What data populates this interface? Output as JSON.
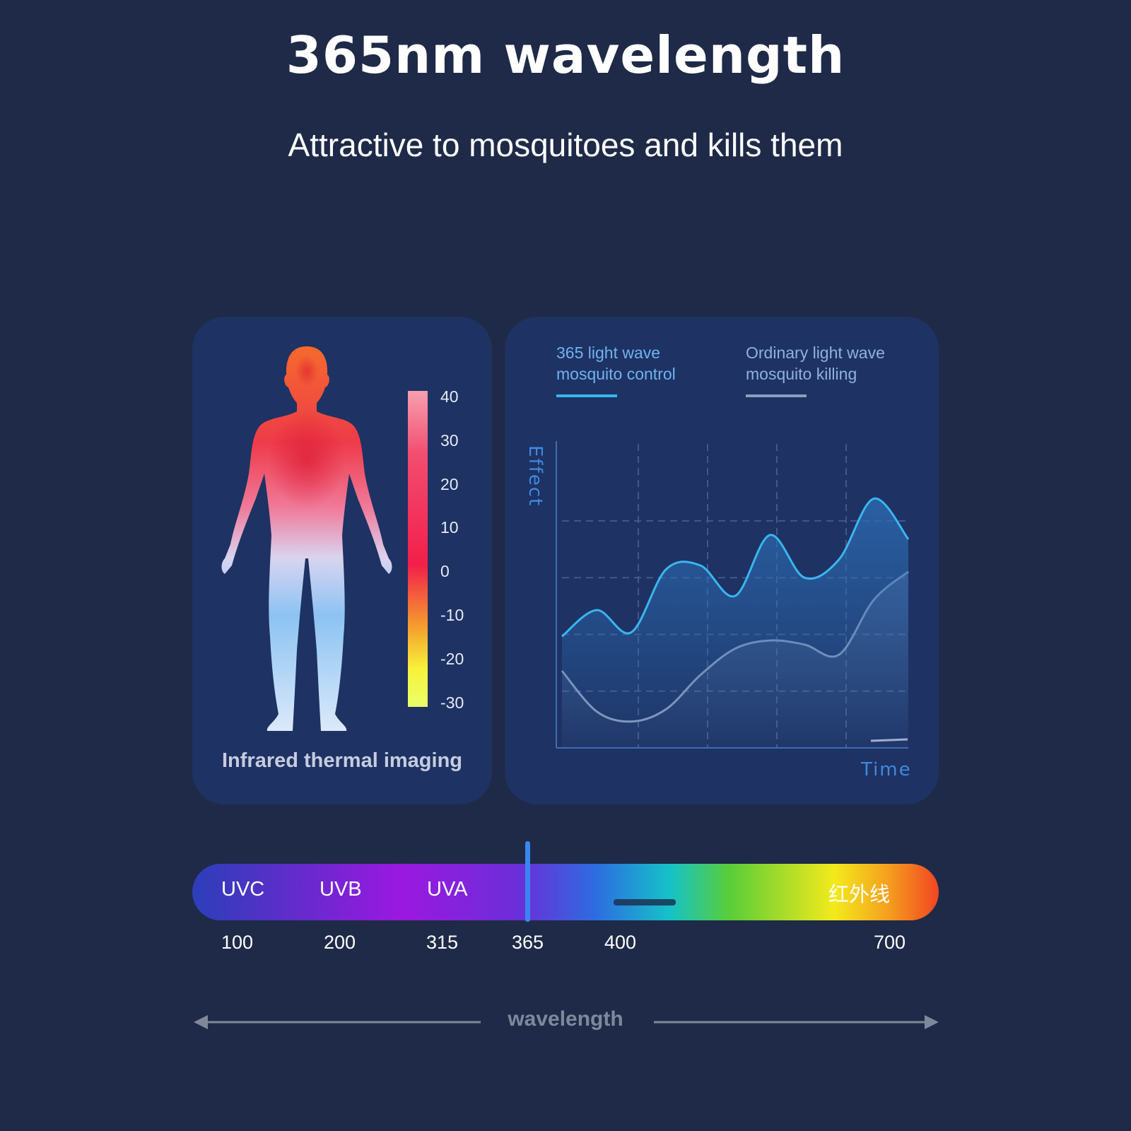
{
  "header": {
    "title": "365nm wavelength",
    "subtitle": "Attractive to mosquitoes and kills them"
  },
  "thermal_panel": {
    "caption": "Infrared thermal imaging",
    "scale_labels": [
      "40",
      "30",
      "20",
      "10",
      "0",
      "-10",
      "-20",
      "-30"
    ],
    "scale_colors": [
      "#f7a0b0",
      "#f23a62",
      "#f5a02e",
      "#f7f23a",
      "#e8f87a"
    ]
  },
  "chart_panel": {
    "legend": [
      {
        "line1": "365 light wave",
        "line2": "mosquito control",
        "color": "#39b6f0"
      },
      {
        "line1": "Ordinary light wave",
        "line2": "mosquito killing",
        "color": "#8d9dbd"
      }
    ],
    "y_axis_label": "Effect",
    "x_axis_label": "Time"
  },
  "spectrum": {
    "bands": [
      "UVC",
      "UVB",
      "UVA",
      "红外线"
    ],
    "values": [
      "100",
      "200",
      "315",
      "365",
      "400",
      "700"
    ],
    "marker": "365",
    "axis_label": "wavelength"
  },
  "chart_data": {
    "type": "line",
    "title": "",
    "xlabel": "Time",
    "ylabel": "Effect",
    "x": [
      0,
      1,
      2,
      3,
      4,
      5,
      6,
      7,
      8,
      9,
      10
    ],
    "series": [
      {
        "name": "365 light wave mosquito control",
        "values": [
          55,
          68,
          57,
          88,
          90,
          75,
          105,
          84,
          93,
          123,
          103
        ]
      },
      {
        "name": "Ordinary light wave mosquito killing",
        "values": [
          38,
          18,
          13,
          19,
          36,
          49,
          53,
          51,
          46,
          73,
          87
        ]
      }
    ],
    "ylim": [
      0,
      150
    ],
    "grid": true,
    "legend_position": "top"
  }
}
